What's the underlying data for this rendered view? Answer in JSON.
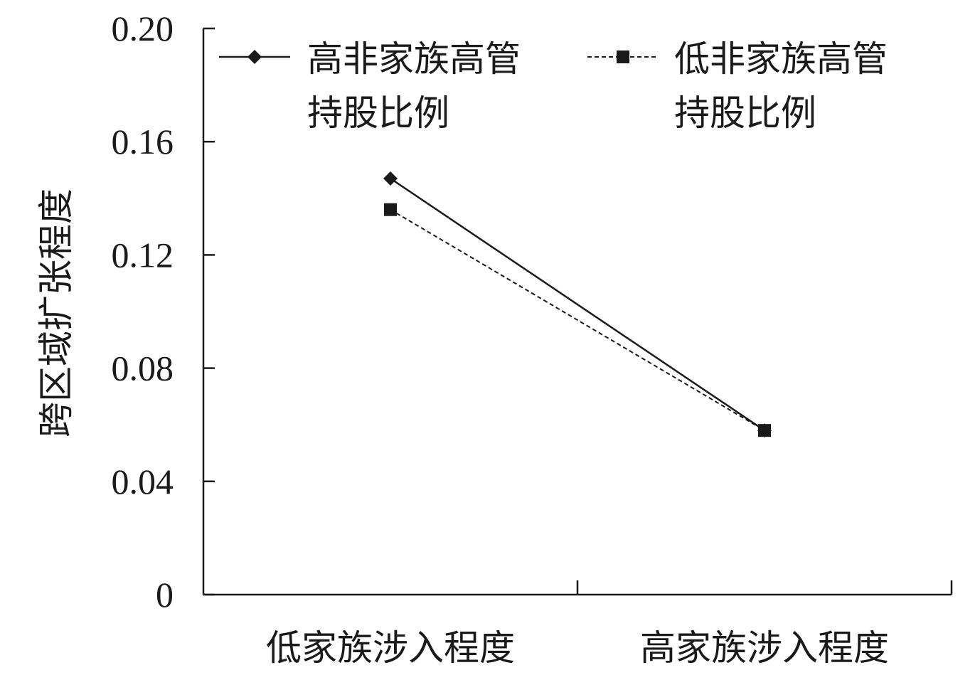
{
  "chart_data": {
    "type": "line",
    "title": "",
    "xlabel": "",
    "ylabel": "跨区域扩张程度",
    "categories": [
      "低家族涉入程度",
      "高家族涉入程度"
    ],
    "series": [
      {
        "name": "高非家族高管持股比例",
        "name_lines": [
          "高非家族高管",
          "持股比例"
        ],
        "values": [
          0.147,
          0.058
        ],
        "marker": "diamond",
        "line_style": "solid",
        "color": "#1a1a1a"
      },
      {
        "name": "低非家族高管持股比例",
        "name_lines": [
          "低非家族高管",
          "持股比例"
        ],
        "values": [
          0.136,
          0.058
        ],
        "marker": "square",
        "line_style": "dashed",
        "color": "#1a1a1a"
      }
    ],
    "ylim": [
      0,
      0.2
    ],
    "yticks": [
      0,
      0.04,
      0.08,
      0.12,
      0.16,
      0.2
    ],
    "ytick_labels": [
      "0",
      "0.04",
      "0.08",
      "0.12",
      "0.16",
      "0.20"
    ],
    "grid": false,
    "legend_position": "top"
  }
}
